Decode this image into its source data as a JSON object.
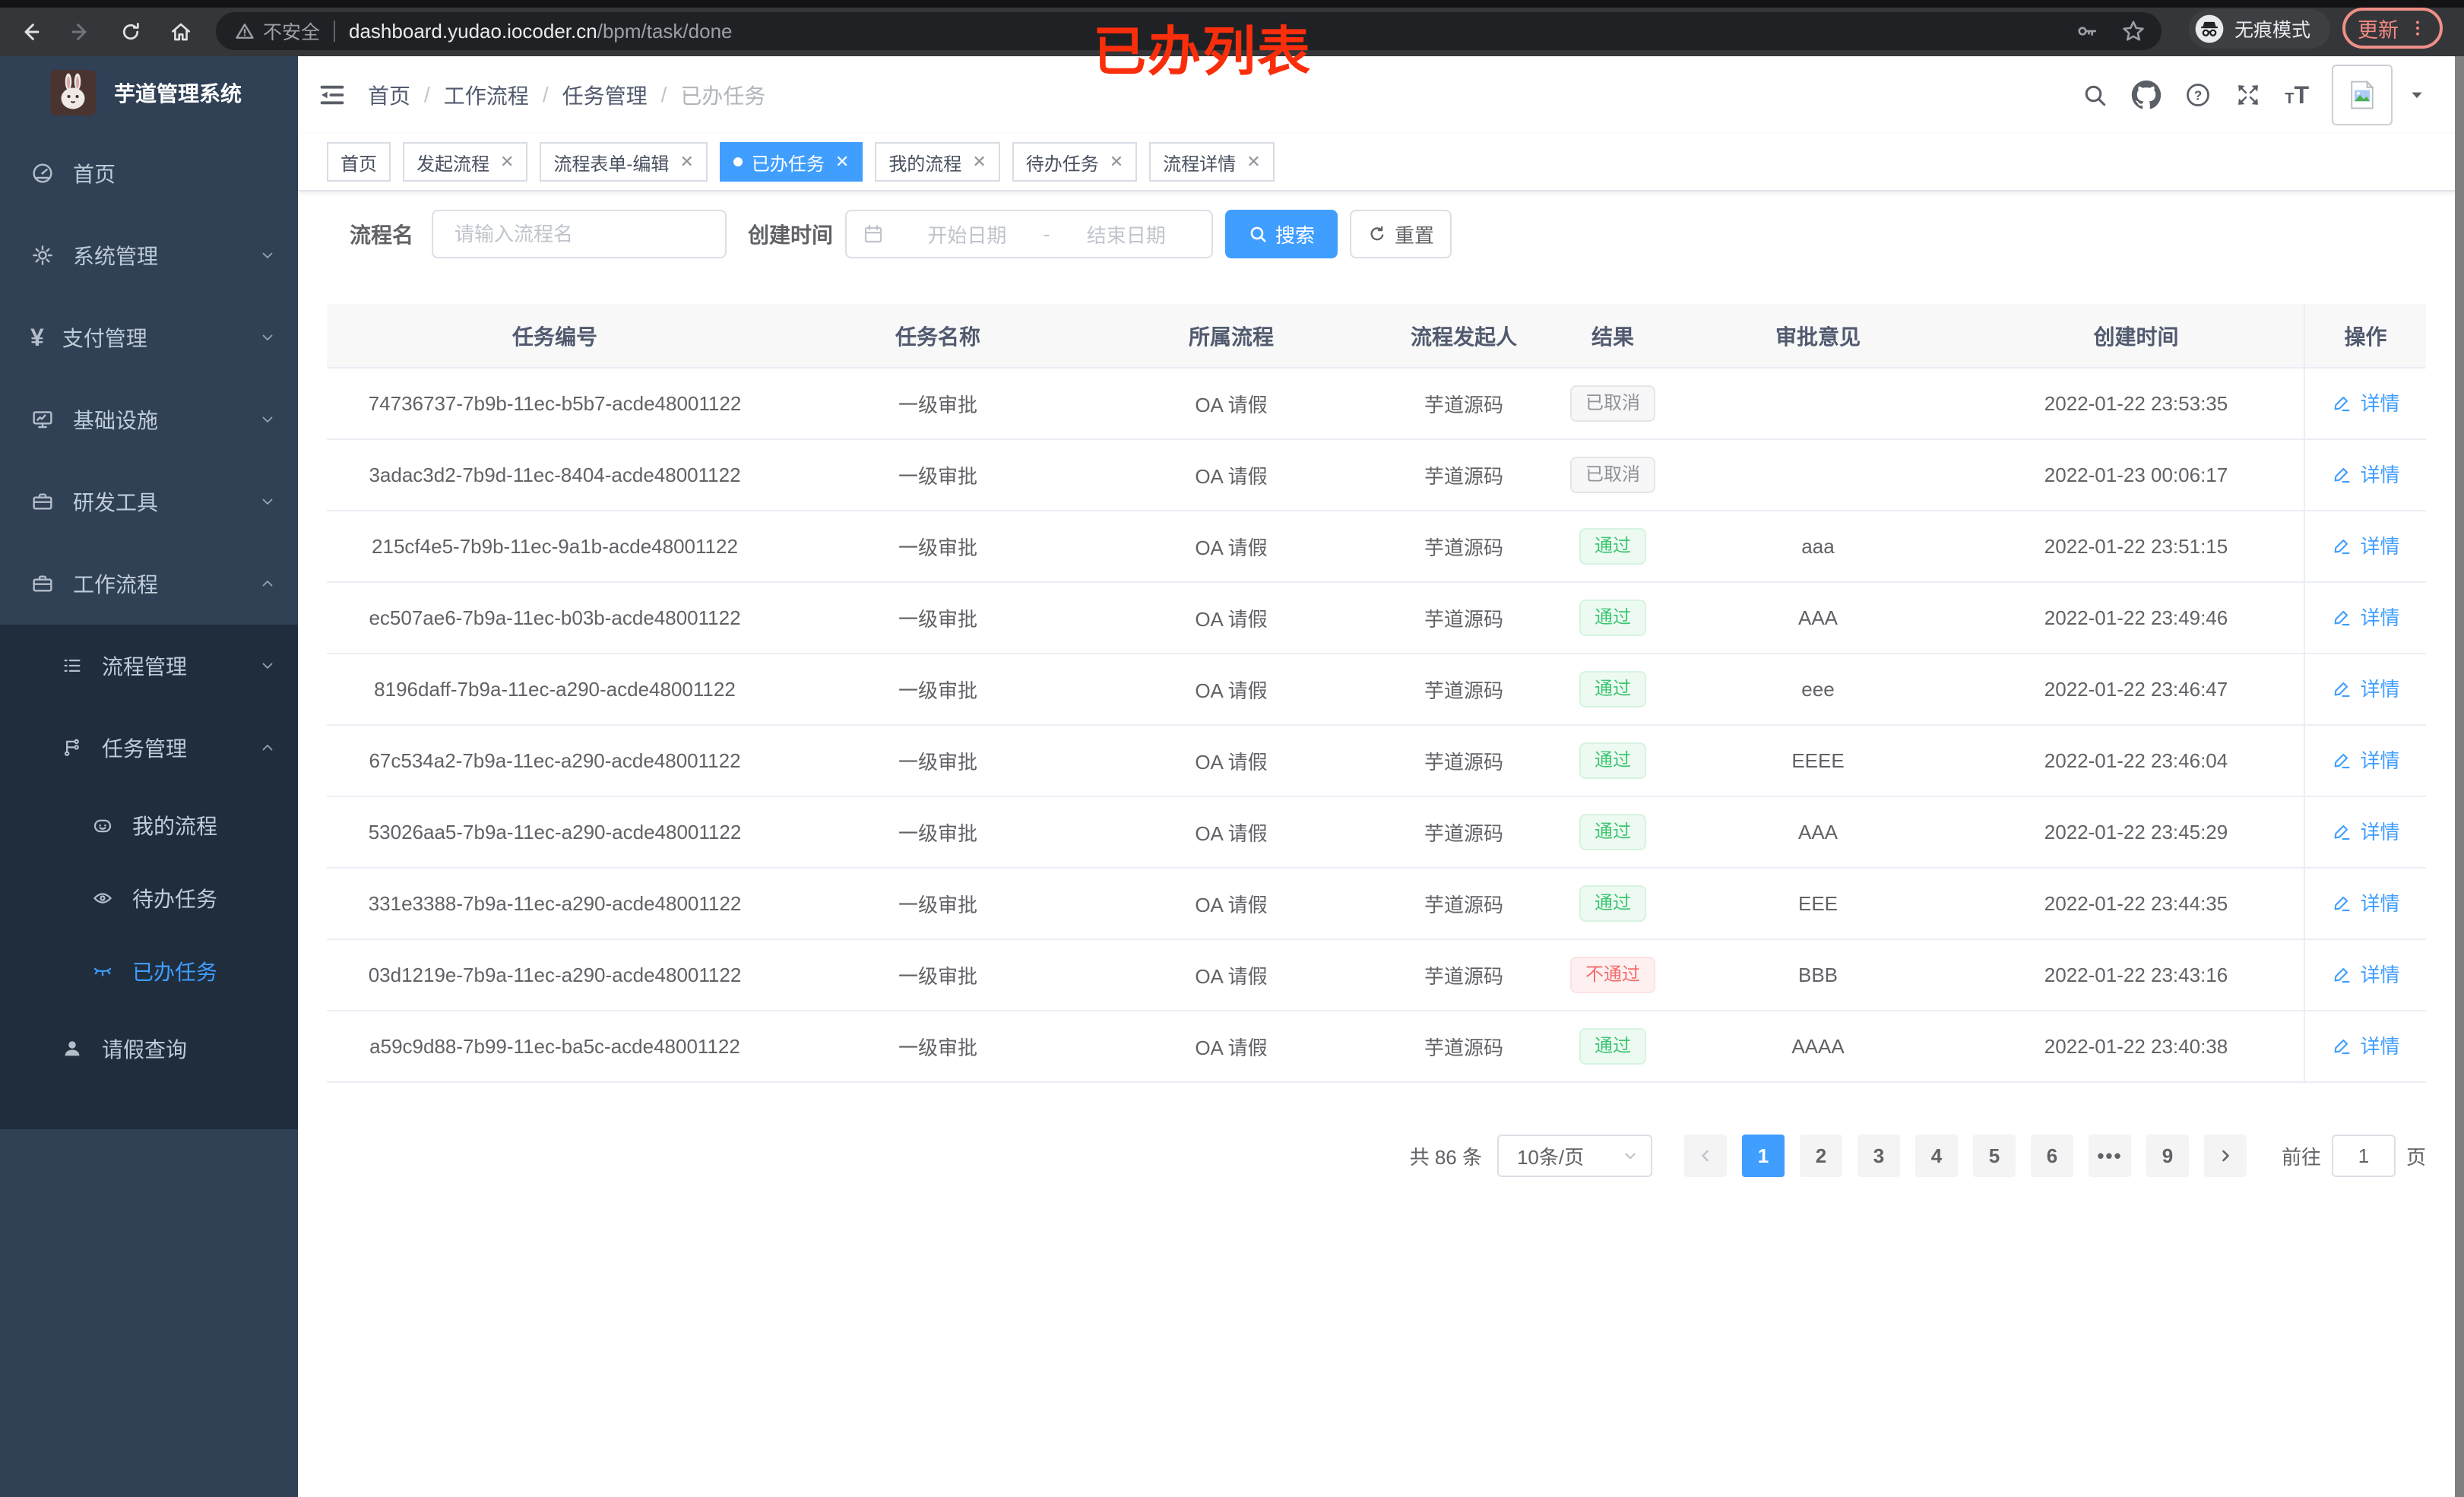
{
  "browser": {
    "security_label": "不安全",
    "url_host": "dashboard.yudao.iocoder.cn",
    "url_path": "/bpm/task/done",
    "incognito_label": "无痕模式",
    "update_label": "更新",
    "annotation": "已办列表"
  },
  "sidebar": {
    "title": "芋道管理系统",
    "items": [
      {
        "id": "home",
        "level": 1,
        "icon": "dashboard-icon",
        "label": "首页"
      },
      {
        "id": "system",
        "level": 1,
        "icon": "gear-icon",
        "label": "系统管理",
        "chevron": "down"
      },
      {
        "id": "payment",
        "level": 1,
        "icon": "yen-icon",
        "label": "支付管理",
        "chevron": "down"
      },
      {
        "id": "infra",
        "level": 1,
        "icon": "monitor-icon",
        "label": "基础设施",
        "chevron": "down"
      },
      {
        "id": "devtools",
        "level": 1,
        "icon": "toolbox-icon",
        "label": "研发工具",
        "chevron": "down"
      },
      {
        "id": "workflow",
        "level": 1,
        "icon": "briefcase-icon",
        "label": "工作流程",
        "chevron": "up"
      },
      {
        "id": "process-mgmt",
        "level": 2,
        "icon": "list-icon",
        "label": "流程管理",
        "chevron": "down",
        "sub": true
      },
      {
        "id": "task-mgmt",
        "level": 2,
        "icon": "flow-icon",
        "label": "任务管理",
        "chevron": "up",
        "sub": true
      },
      {
        "id": "my-process",
        "level": 3,
        "icon": "face-icon",
        "label": "我的流程",
        "sub": true
      },
      {
        "id": "todo-tasks",
        "level": 3,
        "icon": "eye-icon",
        "label": "待办任务",
        "sub": true
      },
      {
        "id": "done-tasks",
        "level": 3,
        "icon": "eye-closed-icon",
        "label": "已办任务",
        "sub": true,
        "active": true
      },
      {
        "id": "leave-query",
        "level": 2,
        "icon": "user-icon",
        "label": "请假查询",
        "sub": true
      }
    ]
  },
  "breadcrumb": [
    "首页",
    "工作流程",
    "任务管理",
    "已办任务"
  ],
  "tabs": [
    {
      "label": "首页",
      "closable": false,
      "active": false
    },
    {
      "label": "发起流程",
      "closable": true,
      "active": false
    },
    {
      "label": "流程表单-编辑",
      "closable": true,
      "active": false
    },
    {
      "label": "已办任务",
      "closable": true,
      "active": true
    },
    {
      "label": "我的流程",
      "closable": true,
      "active": false
    },
    {
      "label": "待办任务",
      "closable": true,
      "active": false
    },
    {
      "label": "流程详情",
      "closable": true,
      "active": false
    }
  ],
  "filters": {
    "name_label": "流程名",
    "name_placeholder": "请输入流程名",
    "date_label": "创建时间",
    "date_start_placeholder": "开始日期",
    "date_separator": "-",
    "date_end_placeholder": "结束日期",
    "search_label": "搜索",
    "reset_label": "重置"
  },
  "table": {
    "columns": [
      "任务编号",
      "任务名称",
      "所属流程",
      "流程发起人",
      "结果",
      "审批意见",
      "创建时间",
      "操作"
    ],
    "action_label": "详情",
    "rows": [
      {
        "id": "74736737-7b9b-11ec-b5b7-acde48001122",
        "name": "一级审批",
        "flow": "OA 请假",
        "starter": "芋道源码",
        "result": "已取消",
        "result_type": "info",
        "comment": "",
        "created": "2022-01-22 23:53:35"
      },
      {
        "id": "3adac3d2-7b9d-11ec-8404-acde48001122",
        "name": "一级审批",
        "flow": "OA 请假",
        "starter": "芋道源码",
        "result": "已取消",
        "result_type": "info",
        "comment": "",
        "created": "2022-01-23 00:06:17"
      },
      {
        "id": "215cf4e5-7b9b-11ec-9a1b-acde48001122",
        "name": "一级审批",
        "flow": "OA 请假",
        "starter": "芋道源码",
        "result": "通过",
        "result_type": "success",
        "comment": "aaa",
        "created": "2022-01-22 23:51:15"
      },
      {
        "id": "ec507ae6-7b9a-11ec-b03b-acde48001122",
        "name": "一级审批",
        "flow": "OA 请假",
        "starter": "芋道源码",
        "result": "通过",
        "result_type": "success",
        "comment": "AAA",
        "created": "2022-01-22 23:49:46"
      },
      {
        "id": "8196daff-7b9a-11ec-a290-acde48001122",
        "name": "一级审批",
        "flow": "OA 请假",
        "starter": "芋道源码",
        "result": "通过",
        "result_type": "success",
        "comment": "eee",
        "created": "2022-01-22 23:46:47"
      },
      {
        "id": "67c534a2-7b9a-11ec-a290-acde48001122",
        "name": "一级审批",
        "flow": "OA 请假",
        "starter": "芋道源码",
        "result": "通过",
        "result_type": "success",
        "comment": "EEEE",
        "created": "2022-01-22 23:46:04"
      },
      {
        "id": "53026aa5-7b9a-11ec-a290-acde48001122",
        "name": "一级审批",
        "flow": "OA 请假",
        "starter": "芋道源码",
        "result": "通过",
        "result_type": "success",
        "comment": "AAA",
        "created": "2022-01-22 23:45:29"
      },
      {
        "id": "331e3388-7b9a-11ec-a290-acde48001122",
        "name": "一级审批",
        "flow": "OA 请假",
        "starter": "芋道源码",
        "result": "通过",
        "result_type": "success",
        "comment": "EEE",
        "created": "2022-01-22 23:44:35"
      },
      {
        "id": "03d1219e-7b9a-11ec-a290-acde48001122",
        "name": "一级审批",
        "flow": "OA 请假",
        "starter": "芋道源码",
        "result": "不通过",
        "result_type": "danger",
        "comment": "BBB",
        "created": "2022-01-22 23:43:16"
      },
      {
        "id": "a59c9d88-7b99-11ec-ba5c-acde48001122",
        "name": "一级审批",
        "flow": "OA 请假",
        "starter": "芋道源码",
        "result": "通过",
        "result_type": "success",
        "comment": "AAAA",
        "created": "2022-01-22 23:40:38"
      }
    ]
  },
  "pagination": {
    "total_text": "共 86 条",
    "page_size_label": "10条/页",
    "pages": [
      "1",
      "2",
      "3",
      "4",
      "5",
      "6",
      "•••",
      "9"
    ],
    "active_page": "1",
    "goto_label": "前往",
    "goto_value": "1",
    "page_unit": "页"
  },
  "colors": {
    "accent": "#409eff",
    "success": "#3ec574",
    "danger": "#f56c6c",
    "info": "#909399",
    "sidebar_bg": "#304156",
    "submenu_bg": "#1f2d3d",
    "annotation": "#fb2e0c"
  }
}
